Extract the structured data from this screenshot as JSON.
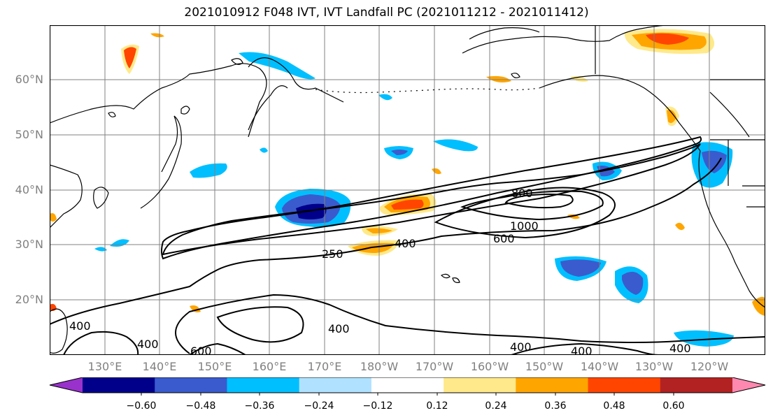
{
  "title": "2021010912 F048 IVT, IVT Landfall PC (2021011212 - 2021011412)",
  "lat_labels": [
    "60°N",
    "50°N",
    "40°N",
    "30°N",
    "20°N"
  ],
  "lon_labels": [
    "130°E",
    "140°E",
    "150°E",
    "160°E",
    "170°E",
    "180°W",
    "170°W",
    "160°W",
    "150°W",
    "140°W",
    "130°W",
    "120°W"
  ],
  "contour_labels": [
    "800",
    "1000",
    "600",
    "400",
    "250",
    "400",
    "400",
    "600",
    "400",
    "400",
    "400",
    "400"
  ],
  "colorbar": {
    "ticks": [
      "−0.60",
      "−0.48",
      "−0.36",
      "−0.24",
      "−0.12",
      "0.12",
      "0.24",
      "0.36",
      "0.48",
      "0.60"
    ],
    "colors": [
      "#9932cc",
      "#00008b",
      "#3a5bcd",
      "#00bfff",
      "#b0e2ff",
      "#ffffff",
      "#ffe98a",
      "#ffa500",
      "#ff4500",
      "#b22222",
      "#ff88b0"
    ]
  },
  "colors": {
    "contour": "#000000",
    "grid": "#808080",
    "coast": "#000000"
  }
}
